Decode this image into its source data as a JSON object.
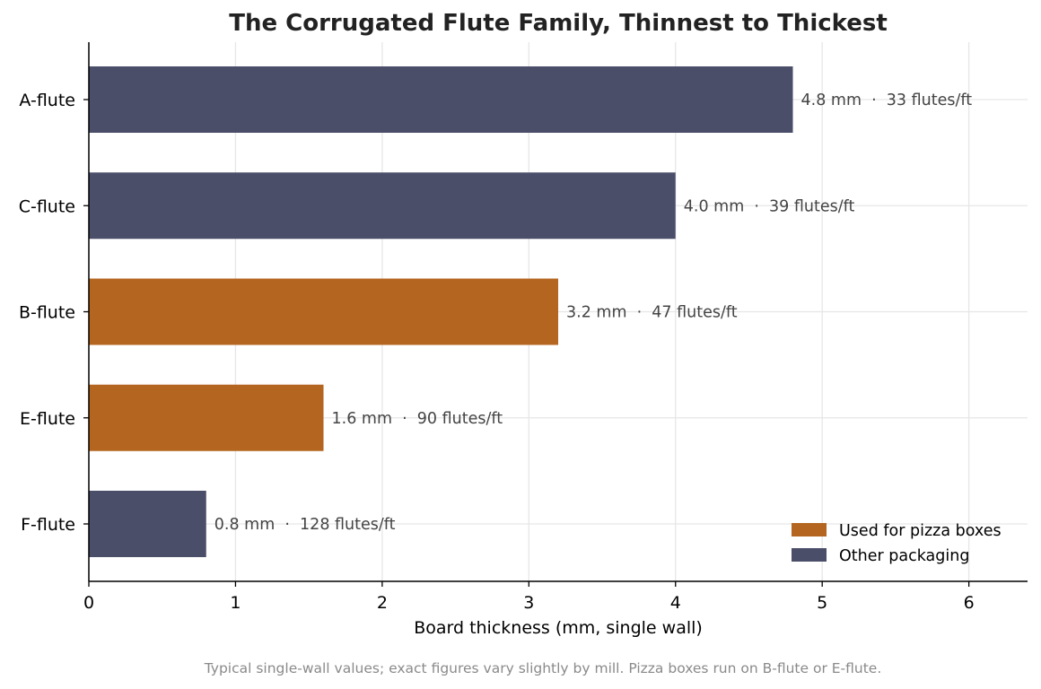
{
  "chart_data": {
    "type": "bar",
    "orientation": "horizontal",
    "title": "The Corrugated Flute Family, Thinnest to Thickest",
    "xlabel": "Board thickness (mm, single wall)",
    "ylabel": "",
    "xlim": [
      0,
      6.4
    ],
    "xticks": [
      "0",
      "1",
      "2",
      "3",
      "4",
      "5",
      "6"
    ],
    "grid": true,
    "categories": [
      "A-flute",
      "C-flute",
      "B-flute",
      "E-flute",
      "F-flute"
    ],
    "values": [
      4.8,
      4.0,
      3.2,
      1.6,
      0.8
    ],
    "groups": [
      "other",
      "other",
      "pizza",
      "pizza",
      "other"
    ],
    "data_labels": [
      "4.8 mm  ·  33 flutes/ft",
      "4.0 mm  ·  39 flutes/ft",
      "3.2 mm  ·  47 flutes/ft",
      "1.6 mm  ·  90 flutes/ft",
      "0.8 mm  ·  128 flutes/ft"
    ],
    "legend": {
      "placement": "lower-right",
      "items": [
        {
          "key": "pizza",
          "label": "Used for pizza boxes"
        },
        {
          "key": "other",
          "label": "Other packaging"
        }
      ]
    },
    "colors": {
      "pizza": "#b4651f",
      "other": "#4a4e69"
    },
    "footnote": "Typical single-wall values; exact figures vary slightly by mill. Pizza boxes run on B-flute or E-flute."
  }
}
